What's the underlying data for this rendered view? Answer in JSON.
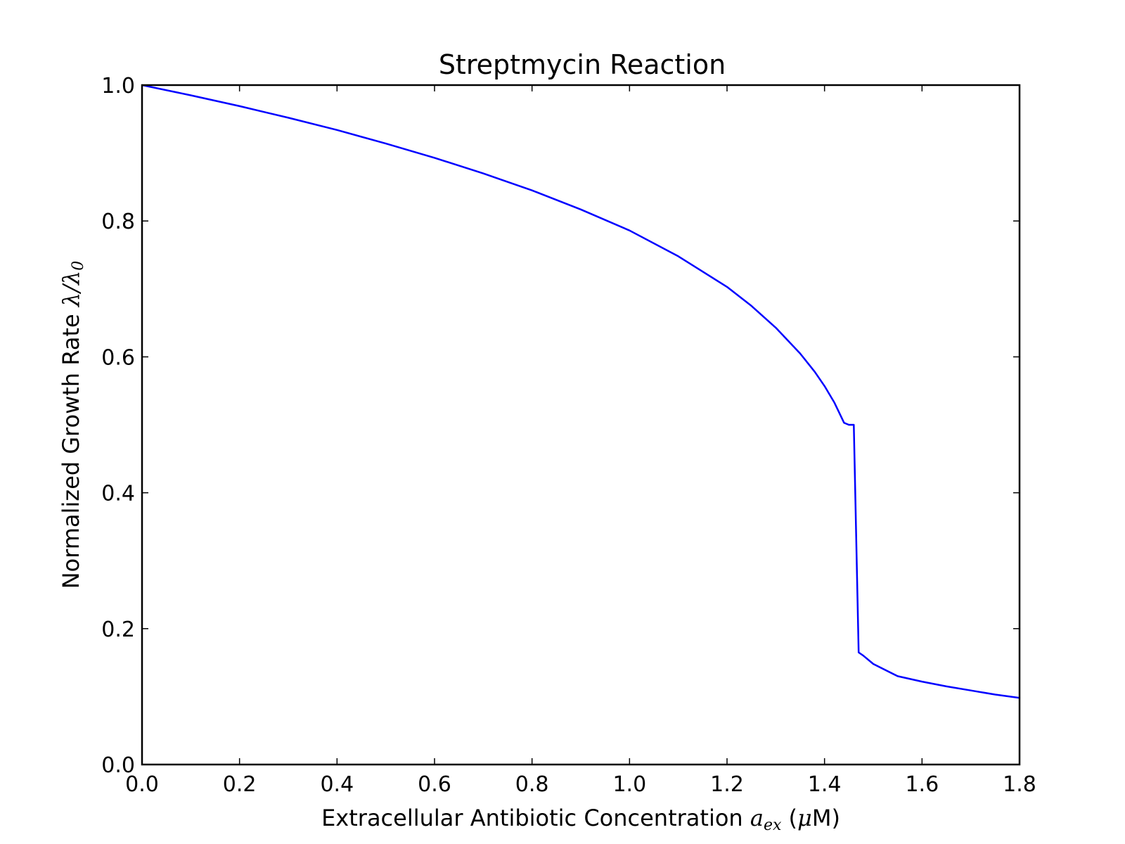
{
  "chart_data": {
    "type": "line",
    "title": "Streptmycin Reaction",
    "xlabel": {
      "prefix": "Extracellular Antibiotic Concentration ",
      "symbol": "a",
      "subscript": "ex",
      "unit_open": " (",
      "unit_symbol": "μ",
      "unit_rest": "M)"
    },
    "ylabel": {
      "prefix": "Normalized Growth Rate ",
      "symbol": "λ/λ",
      "subscript": "0"
    },
    "xlim": [
      0.0,
      1.8
    ],
    "ylim": [
      0.0,
      1.0
    ],
    "xticks": [
      "0.0",
      "0.2",
      "0.4",
      "0.6",
      "0.8",
      "1.0",
      "1.2",
      "1.4",
      "1.6",
      "1.8"
    ],
    "yticks": [
      "0.0",
      "0.2",
      "0.4",
      "0.6",
      "0.8",
      "1.0"
    ],
    "grid": false,
    "legend": "none",
    "series": [
      {
        "color": "#0000ff",
        "x": [
          0.0,
          0.1,
          0.2,
          0.3,
          0.4,
          0.5,
          0.6,
          0.7,
          0.8,
          0.9,
          1.0,
          1.1,
          1.2,
          1.25,
          1.3,
          1.35,
          1.38,
          1.4,
          1.42,
          1.44,
          1.45,
          1.46,
          1.47,
          1.48,
          1.5,
          1.55,
          1.6,
          1.65,
          1.7,
          1.75,
          1.8
        ],
        "y": [
          1.0,
          0.985,
          0.969,
          0.952,
          0.934,
          0.914,
          0.893,
          0.87,
          0.845,
          0.817,
          0.786,
          0.748,
          0.703,
          0.675,
          0.643,
          0.605,
          0.578,
          0.557,
          0.533,
          0.503,
          0.5,
          0.5,
          0.165,
          0.16,
          0.148,
          0.13,
          0.122,
          0.115,
          0.109,
          0.103,
          0.098
        ]
      }
    ]
  }
}
